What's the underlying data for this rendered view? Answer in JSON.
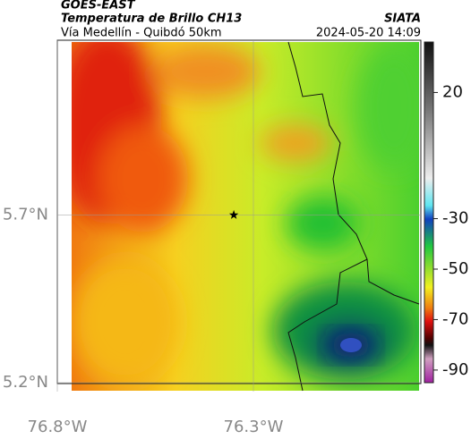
{
  "chart_data": {
    "type": "map",
    "title": "GOES-EAST",
    "subtitle": "Temperatura de Brillo CH13",
    "caption": "Vía Medellín - Quibdó 50km",
    "source": "SIATA",
    "timestamp": "2024-05-20 14:09",
    "xlim": [
      -76.8,
      -75.873
    ],
    "ylim": [
      5.2,
      6.221
    ],
    "xticks": [
      {
        "value": -76.8,
        "label": "76.8°W"
      },
      {
        "value": -76.3,
        "label": "76.3°W"
      }
    ],
    "yticks": [
      {
        "value": 5.2,
        "label": "5.2°N"
      },
      {
        "value": 5.7,
        "label": "5.7°N"
      }
    ],
    "grid": true,
    "marker": {
      "x": -76.35,
      "y": 5.7
    },
    "colorbar": {
      "lim": [
        -95,
        40
      ],
      "ticks": [
        20,
        -30,
        -50,
        -70,
        -90
      ]
    }
  }
}
